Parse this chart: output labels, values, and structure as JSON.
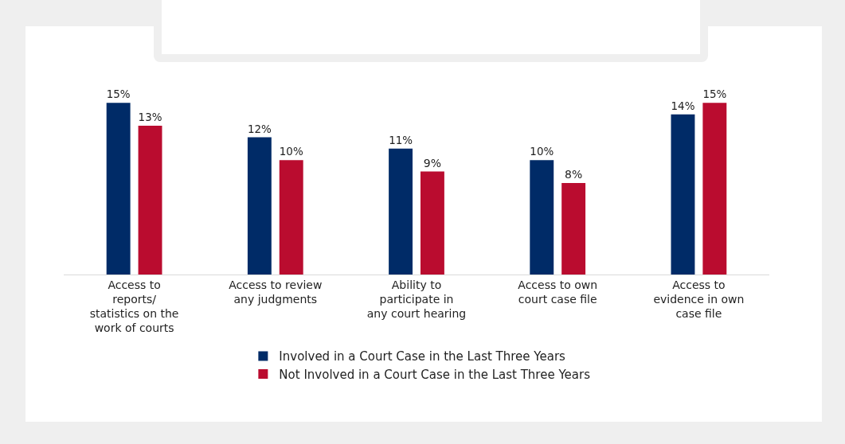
{
  "chart_data": {
    "type": "bar",
    "categories": [
      "Access to reports/ statistics on the work of courts",
      "Access to review any judgments",
      "Ability to participate in any court hearing",
      "Access to own court case file",
      "Access to evidence in own case file"
    ],
    "series": [
      {
        "name": "Involved in a Court Case in the Last Three Years",
        "color": "#002b67",
        "values": [
          15,
          12,
          11,
          10,
          14
        ],
        "value_labels": [
          "15%",
          "12%",
          "11%",
          "10%",
          "14%"
        ]
      },
      {
        "name": "Not Involved in a Court Case in the Last Three Years",
        "color": "#ba0c2f",
        "values": [
          13,
          10,
          9,
          8,
          15
        ],
        "value_labels": [
          "13%",
          "10%",
          "9%",
          "8%",
          "15%"
        ]
      }
    ],
    "legend": "bottom"
  }
}
